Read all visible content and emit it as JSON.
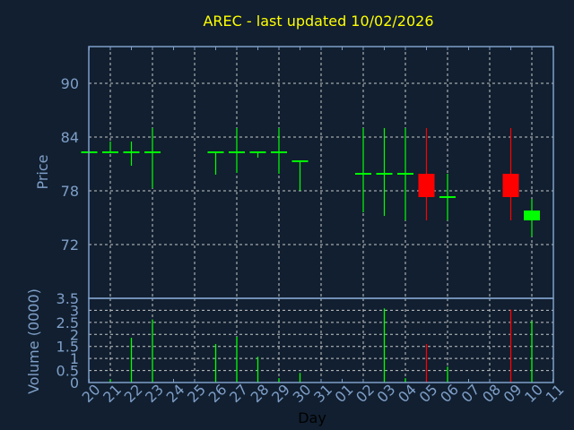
{
  "chart_data": [
    {
      "type": "candlestick",
      "title": "AREC - last updated 10/02/2026",
      "ylabel": "Price",
      "xlabel": "Day",
      "ylim": [
        66,
        94.1
      ],
      "yticks": [
        "72",
        "78",
        "84",
        "90"
      ],
      "xticks": [
        "20",
        "21",
        "22",
        "23",
        "24",
        "25",
        "26",
        "27",
        "28",
        "29",
        "30",
        "31",
        "01",
        "02",
        "03",
        "04",
        "05",
        "06",
        "07",
        "08",
        "09",
        "10",
        "11"
      ],
      "grid": true,
      "up_color": "#00ff00",
      "down_color": "#ff0000",
      "candles": [
        {
          "day": "20",
          "open": 82.3,
          "high": 82.3,
          "low": 82.3,
          "close": 82.3
        },
        {
          "day": "21",
          "open": 82.3,
          "high": 83.5,
          "low": 82.3,
          "close": 82.3
        },
        {
          "day": "22",
          "open": 82.3,
          "high": 83.5,
          "low": 80.8,
          "close": 82.3
        },
        {
          "day": "23",
          "open": 82.3,
          "high": 85.0,
          "low": 78.3,
          "close": 82.3
        },
        {
          "day": "26",
          "open": 82.3,
          "high": 82.3,
          "low": 79.8,
          "close": 82.3
        },
        {
          "day": "27",
          "open": 82.3,
          "high": 85.0,
          "low": 80.0,
          "close": 82.3
        },
        {
          "day": "28",
          "open": 82.3,
          "high": 82.3,
          "low": 81.7,
          "close": 82.3
        },
        {
          "day": "29",
          "open": 82.3,
          "high": 85.0,
          "low": 79.9,
          "close": 82.3
        },
        {
          "day": "30",
          "open": 81.3,
          "high": 81.3,
          "low": 78.0,
          "close": 81.3
        },
        {
          "day": "02",
          "open": 79.9,
          "high": 85.0,
          "low": 75.6,
          "close": 79.9
        },
        {
          "day": "03",
          "open": 79.9,
          "high": 85.0,
          "low": 75.2,
          "close": 79.9
        },
        {
          "day": "04",
          "open": 79.9,
          "high": 85.0,
          "low": 74.7,
          "close": 79.9
        },
        {
          "day": "05",
          "open": 79.9,
          "high": 85.0,
          "low": 74.7,
          "close": 77.3
        },
        {
          "day": "06",
          "open": 77.3,
          "high": 79.9,
          "low": 74.7,
          "close": 77.3
        },
        {
          "day": "09",
          "open": 79.9,
          "high": 85.0,
          "low": 74.7,
          "close": 77.3
        },
        {
          "day": "10",
          "open": 74.7,
          "high": 77.1,
          "low": 72.9,
          "close": 75.8
        }
      ]
    },
    {
      "type": "bar",
      "ylabel": "Volume (0000)",
      "xlabel": "Day",
      "ylim": [
        0,
        3.5
      ],
      "yticks": [
        "0",
        "0.5",
        "1",
        "1.5",
        "2",
        "2.5",
        "3",
        "3.5"
      ],
      "grid": true,
      "bars": [
        {
          "day": "21",
          "value": 0.13,
          "color": "#00ff00"
        },
        {
          "day": "22",
          "value": 1.86,
          "color": "#00ff00"
        },
        {
          "day": "23",
          "value": 2.62,
          "color": "#00ff00"
        },
        {
          "day": "26",
          "value": 1.6,
          "color": "#00ff00"
        },
        {
          "day": "27",
          "value": 1.9,
          "color": "#00ff00"
        },
        {
          "day": "28",
          "value": 1.07,
          "color": "#00ff00"
        },
        {
          "day": "29",
          "value": 0.18,
          "color": "#00ff00"
        },
        {
          "day": "30",
          "value": 0.4,
          "color": "#00ff00"
        },
        {
          "day": "03",
          "value": 3.08,
          "color": "#00ff00"
        },
        {
          "day": "04",
          "value": 0.18,
          "color": "#00ff00"
        },
        {
          "day": "05",
          "value": 1.6,
          "color": "#ff0000"
        },
        {
          "day": "06",
          "value": 0.66,
          "color": "#00ff00"
        },
        {
          "day": "09",
          "value": 3.03,
          "color": "#ff0000"
        },
        {
          "day": "10",
          "value": 2.55,
          "color": "#00ff00"
        }
      ]
    }
  ]
}
